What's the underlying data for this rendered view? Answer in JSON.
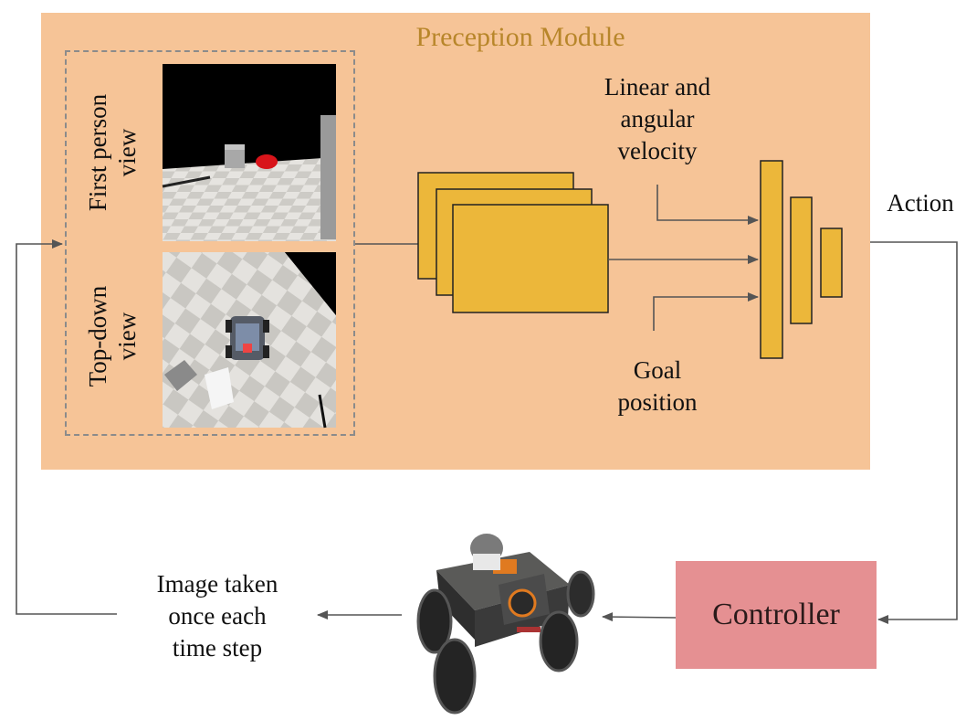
{
  "module": {
    "title": "Preception Module"
  },
  "views": {
    "first_person": {
      "label_line1": "First person",
      "label_line2": "view"
    },
    "top_down": {
      "label_line1": "Top-down",
      "label_line2": "view"
    }
  },
  "inputs": {
    "velocity": {
      "line1": "Linear and",
      "line2": "angular",
      "line3": "velocity"
    },
    "goal": {
      "line1": "Goal",
      "line2": "position"
    }
  },
  "action_label": "Action",
  "controller_label": "Controller",
  "image_caption": {
    "line1": "Image taken",
    "line2": "once each",
    "line3": "time step"
  },
  "colors": {
    "module_bg": "#f6c497",
    "title_text": "#b8862a",
    "feature_map": "#ecb73a",
    "controller_bg": "#e59092",
    "arrow": "#555555"
  }
}
